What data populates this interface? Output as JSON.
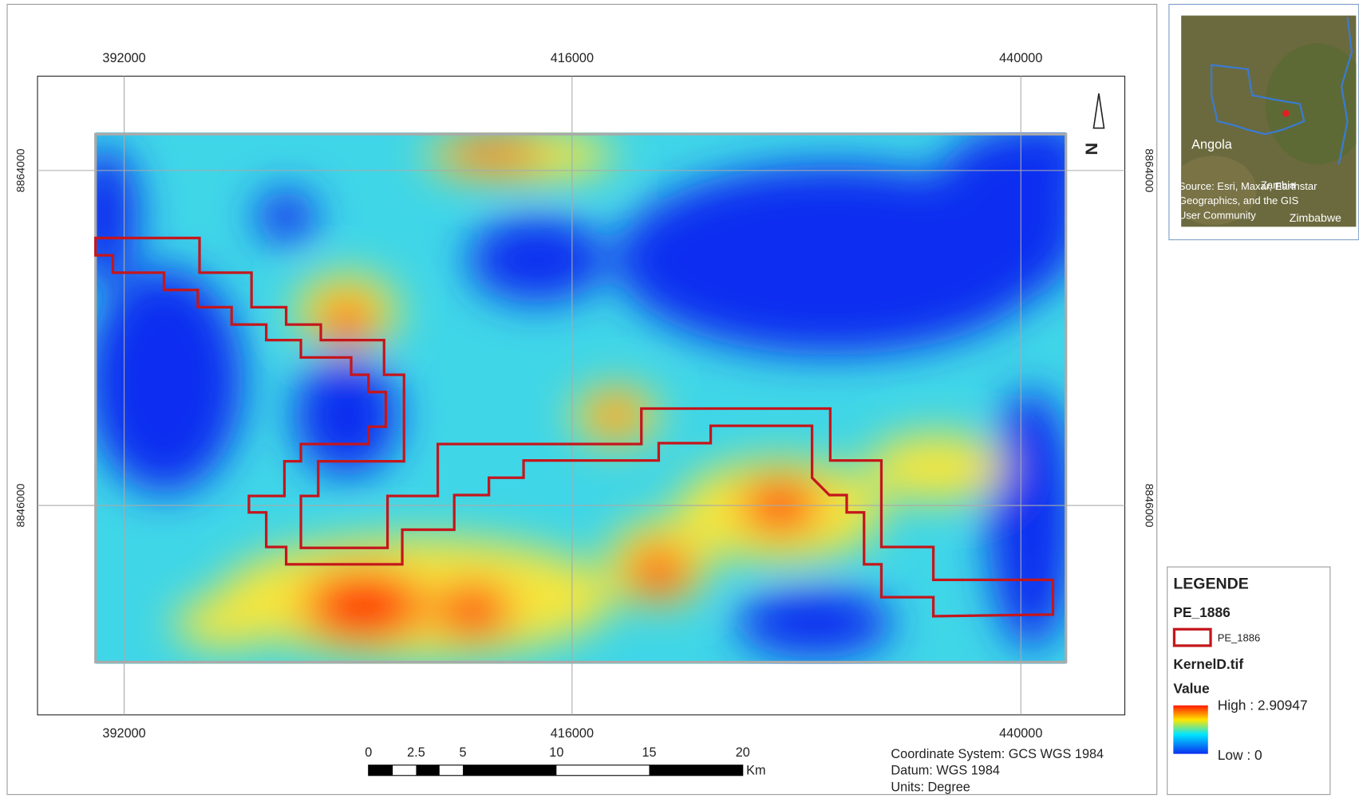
{
  "map": {
    "x_labels": [
      "392000",
      "416000",
      "440000"
    ],
    "y_labels": [
      "8864000",
      "8846000"
    ],
    "north": "N",
    "scale_bar": {
      "labels": [
        "0",
        "2.5",
        "5",
        "10",
        "15",
        "20"
      ],
      "unit": "Km"
    },
    "coordinate_info": [
      "Coordinate System: GCS WGS 1984",
      "Datum: WGS 1984",
      "Units: Degree"
    ]
  },
  "inset": {
    "labels": [
      "Angola",
      "Zambia",
      "Zimbabwe"
    ],
    "credit": [
      "Source: Esri, Maxar, Earthstar",
      "Geographics, and the GIS",
      "User Community"
    ]
  },
  "legend": {
    "title": "LEGENDE",
    "layers": [
      {
        "name": "PE_1886",
        "item": "PE_1886"
      },
      {
        "name": "KernelD.tif",
        "field": "Value",
        "high": "High : 2.90947",
        "low": "Low : 0"
      }
    ]
  }
}
